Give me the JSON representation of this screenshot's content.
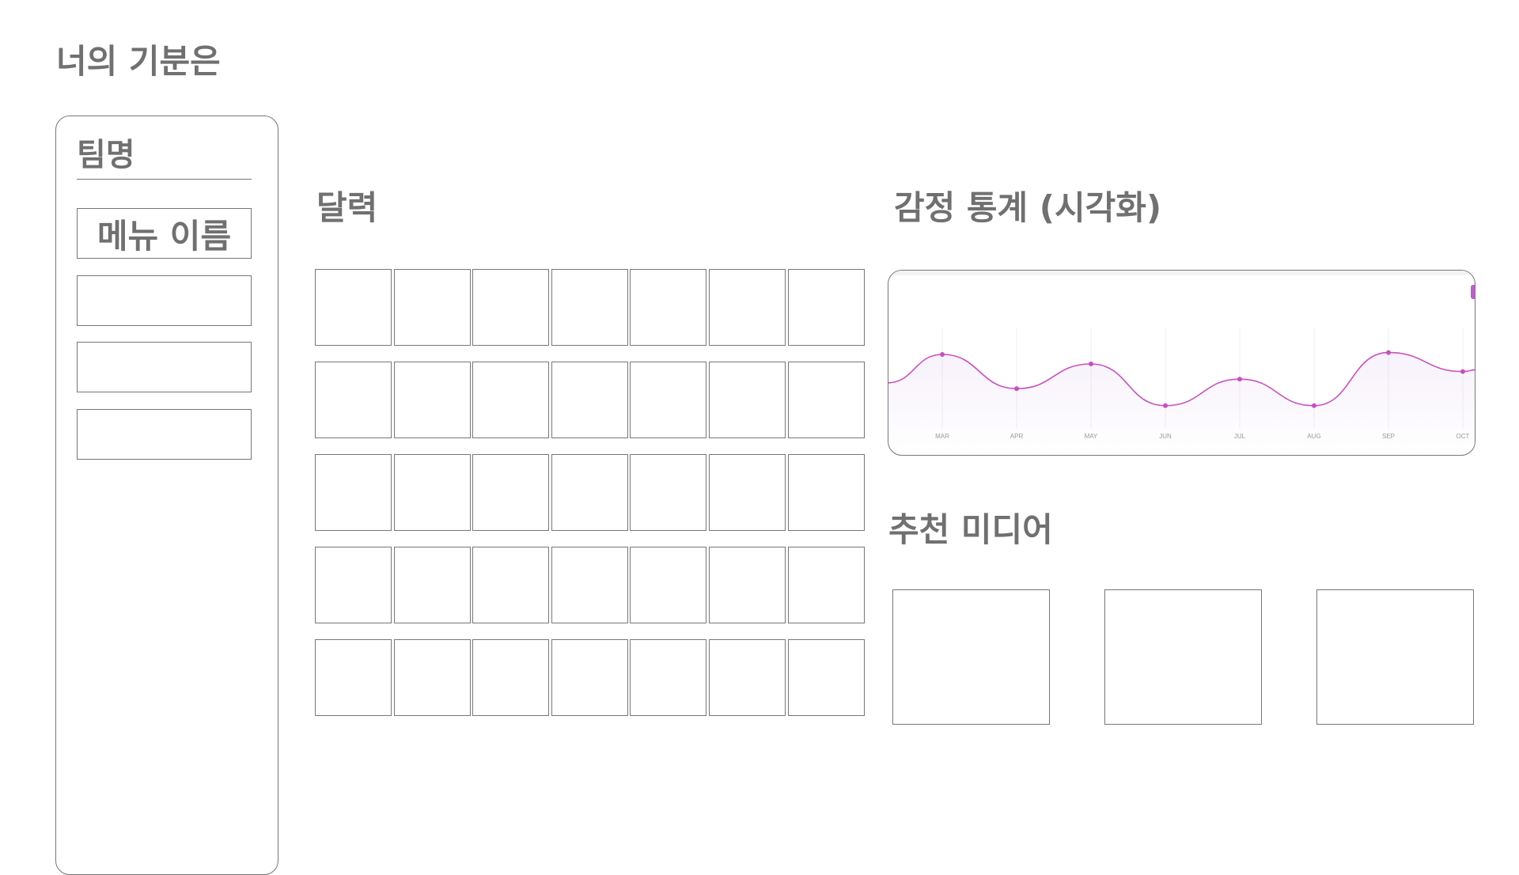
{
  "header": {
    "title": "너의 기분은"
  },
  "sidebar": {
    "team_name": "팀명",
    "items": [
      {
        "label": "메뉴 이름"
      },
      {
        "label": ""
      },
      {
        "label": ""
      },
      {
        "label": ""
      }
    ]
  },
  "calendar": {
    "title": "달력",
    "rows": 5,
    "columns": 7
  },
  "stats": {
    "title": "감정 통계 (시각화)"
  },
  "recommend": {
    "title": "추천 미디어",
    "items": [
      {
        "label": ""
      },
      {
        "label": ""
      },
      {
        "label": ""
      }
    ]
  },
  "colors": {
    "text": "#707070",
    "border": "#777777",
    "accent": "#c94fbf"
  },
  "chart_data": {
    "type": "line",
    "categories": [
      "MAR",
      "APR",
      "MAY",
      "JUN",
      "JUL",
      "AUG",
      "SEP",
      "OCT"
    ],
    "series": [
      {
        "values": [
          3.5,
          1.7,
          3.0,
          0.8,
          2.2,
          0.8,
          3.6,
          2.6
        ]
      }
    ],
    "title": "",
    "xlabel": "",
    "ylabel": "",
    "ylim": [
      0,
      5
    ],
    "grid": true,
    "smooth": true
  }
}
